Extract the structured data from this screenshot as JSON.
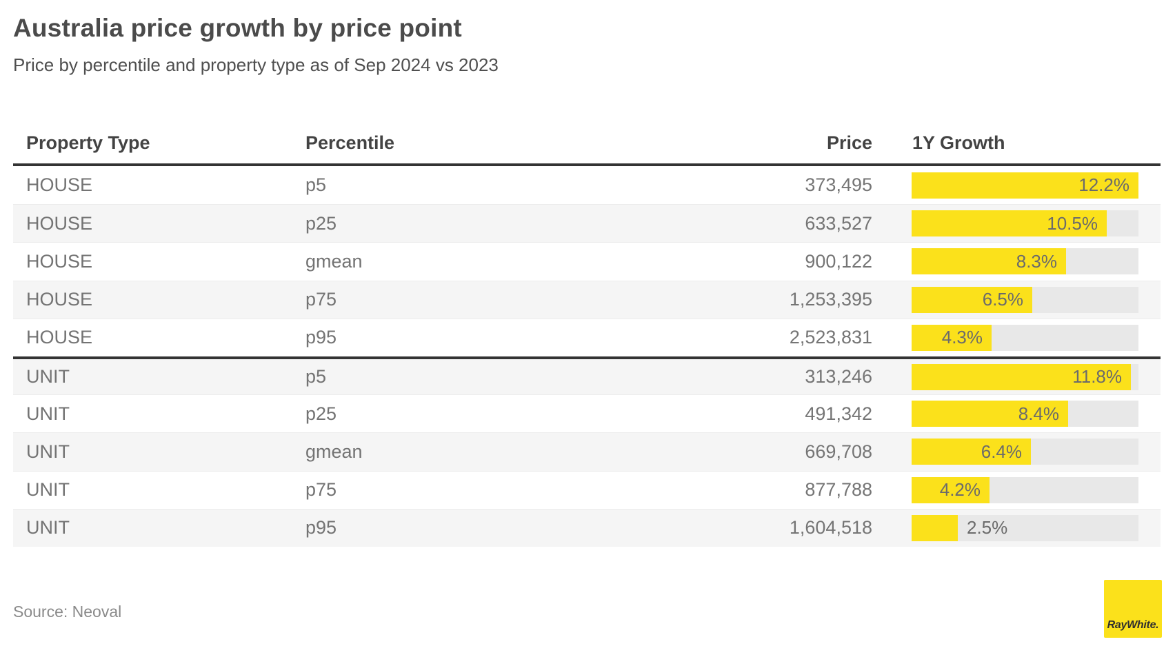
{
  "header": {
    "title": "Australia price growth by price point",
    "subtitle": "Price by percentile and property type as of Sep 2024 vs 2023"
  },
  "table": {
    "columns": [
      "Property Type",
      "Percentile",
      "Price",
      "1Y Growth"
    ],
    "bar_scale_max": 12.2,
    "rows": [
      {
        "property_type": "HOUSE",
        "percentile": "p5",
        "price": "373,495",
        "growth_pct": 12.2,
        "growth_label": "12.2%"
      },
      {
        "property_type": "HOUSE",
        "percentile": "p25",
        "price": "633,527",
        "growth_pct": 10.5,
        "growth_label": "10.5%"
      },
      {
        "property_type": "HOUSE",
        "percentile": "gmean",
        "price": "900,122",
        "growth_pct": 8.3,
        "growth_label": "8.3%"
      },
      {
        "property_type": "HOUSE",
        "percentile": "p75",
        "price": "1,253,395",
        "growth_pct": 6.5,
        "growth_label": "6.5%"
      },
      {
        "property_type": "HOUSE",
        "percentile": "p95",
        "price": "2,523,831",
        "growth_pct": 4.3,
        "growth_label": "4.3%"
      },
      {
        "property_type": "UNIT",
        "percentile": "p5",
        "price": "313,246",
        "growth_pct": 11.8,
        "growth_label": "11.8%"
      },
      {
        "property_type": "UNIT",
        "percentile": "p25",
        "price": "491,342",
        "growth_pct": 8.4,
        "growth_label": "8.4%"
      },
      {
        "property_type": "UNIT",
        "percentile": "gmean",
        "price": "669,708",
        "growth_pct": 6.4,
        "growth_label": "6.4%"
      },
      {
        "property_type": "UNIT",
        "percentile": "p75",
        "price": "877,788",
        "growth_pct": 4.2,
        "growth_label": "4.2%"
      },
      {
        "property_type": "UNIT",
        "percentile": "p95",
        "price": "1,604,518",
        "growth_pct": 2.5,
        "growth_label": "2.5%"
      }
    ]
  },
  "footer": {
    "source": "Source: Neoval",
    "logo_text": "RayWhite."
  },
  "colors": {
    "accent_yellow": "#FBE11B",
    "bar_track": "#E8E8E8",
    "row_stripe": "#F5F5F5",
    "rule_dark": "#333333"
  },
  "chart_data": {
    "type": "table",
    "title": "Australia price growth by price point",
    "subtitle": "Price by percentile and property type as of Sep 2024 vs 2023",
    "columns": [
      "Property Type",
      "Percentile",
      "Price",
      "1Y Growth"
    ],
    "rows": [
      [
        "HOUSE",
        "p5",
        373495,
        12.2
      ],
      [
        "HOUSE",
        "p25",
        633527,
        10.5
      ],
      [
        "HOUSE",
        "gmean",
        900122,
        8.3
      ],
      [
        "HOUSE",
        "p75",
        1253395,
        6.5
      ],
      [
        "HOUSE",
        "p95",
        2523831,
        4.3
      ],
      [
        "UNIT",
        "p5",
        313246,
        11.8
      ],
      [
        "UNIT",
        "p25",
        491342,
        8.4
      ],
      [
        "UNIT",
        "gmean",
        669708,
        6.4
      ],
      [
        "UNIT",
        "p75",
        877788,
        4.2
      ],
      [
        "UNIT",
        "p95",
        1604518,
        2.5
      ]
    ],
    "bar_column": "1Y Growth",
    "bar_units": "%",
    "bar_range": [
      0,
      12.2
    ],
    "source": "Neoval"
  }
}
